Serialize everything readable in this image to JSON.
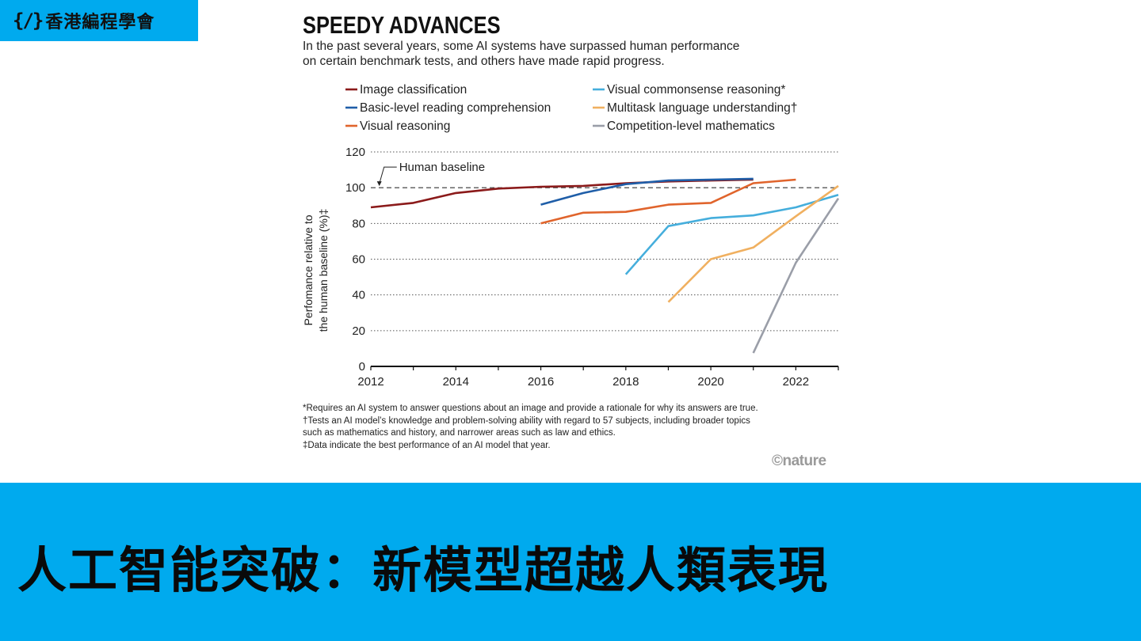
{
  "brand": {
    "mark": "{/}",
    "name": "香港編程學會"
  },
  "headline": "人工智能突破：新模型超越人類表現",
  "credit": "©nature",
  "footnotes": [
    "*Requires an AI system to answer questions about an image and provide a rationale for why its answers are true.",
    "†Tests an AI model’s knowledge and problem-solving ability with regard to 57 subjects, including broader topics",
    "such as mathematics and history, and narrower areas such as law and ethics.",
    "‡Data indicate the best performance of an AI model that year."
  ],
  "colors": {
    "band": "#00aaee"
  },
  "chart_data": {
    "type": "line",
    "title": "SPEEDY ADVANCES",
    "subtitle_lines": [
      "In the past several years, some AI systems have surpassed human performance",
      "on certain benchmark tests, and others have made rapid progress."
    ],
    "ylabel_lines": [
      "Perfomance relative to",
      "the human baseline (%)‡"
    ],
    "xlabel": "",
    "xlim": [
      2012,
      2023
    ],
    "ylim": [
      0,
      120
    ],
    "xticks": [
      2012,
      2014,
      2016,
      2018,
      2020,
      2022
    ],
    "yticks": [
      0,
      20,
      40,
      60,
      80,
      100,
      120
    ],
    "grid": "horizontal dotted",
    "legend_placement": "top, two columns",
    "baseline": {
      "value": 100,
      "label": "Human baseline"
    },
    "series": [
      {
        "name": "Image classification",
        "color": "#8b1a1a",
        "x": [
          2012,
          2013,
          2014,
          2015,
          2016,
          2017,
          2018,
          2019,
          2020,
          2021
        ],
        "y": [
          89,
          91.5,
          97,
          99.5,
          100.5,
          101,
          102.5,
          103.5,
          104,
          104.5
        ]
      },
      {
        "name": "Visual commonsense reasoning*",
        "color": "#45aedc",
        "x": [
          2018,
          2019,
          2020,
          2021,
          2022,
          2023
        ],
        "y": [
          51.5,
          78.5,
          83,
          84.5,
          89,
          96
        ]
      },
      {
        "name": "Basic-level reading comprehension",
        "color": "#1f5ea8",
        "x": [
          2016,
          2017,
          2018,
          2019,
          2020,
          2021
        ],
        "y": [
          90.5,
          97,
          102,
          104,
          104.5,
          105
        ]
      },
      {
        "name": "Multitask language understanding†",
        "color": "#f0b060",
        "x": [
          2019,
          2020,
          2021,
          2022,
          2023
        ],
        "y": [
          36,
          60,
          66.5,
          84,
          101
        ]
      },
      {
        "name": "Visual reasoning",
        "color": "#e0642c",
        "x": [
          2016,
          2017,
          2018,
          2019,
          2020,
          2021,
          2022
        ],
        "y": [
          80,
          86,
          86.5,
          90.5,
          91.5,
          102.5,
          104.5
        ]
      },
      {
        "name": "Competition-level mathematics",
        "color": "#9a9ea8",
        "x": [
          2021,
          2022,
          2023
        ],
        "y": [
          7.5,
          58,
          94
        ]
      }
    ]
  }
}
